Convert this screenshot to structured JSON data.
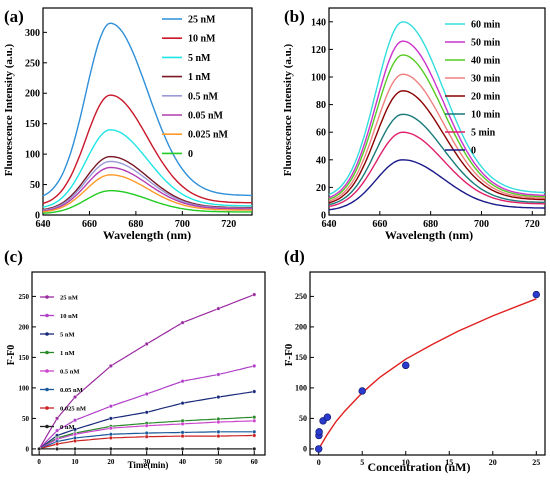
{
  "figure_labels": [
    "(a)",
    "(b)",
    "(c)",
    "(d)"
  ],
  "chart_data": [
    {
      "type": "line",
      "panel": "(a)",
      "xlabel": "Wavelength (nm)",
      "ylabel": "Fluorescence Intensity (a.u.)",
      "xlim": [
        640,
        730
      ],
      "ylim": [
        0,
        340
      ],
      "xticks": [
        640,
        660,
        680,
        700,
        720
      ],
      "yticks": [
        0,
        50,
        100,
        150,
        200,
        250,
        300
      ],
      "grid": false,
      "legend_position": "top-right",
      "series": [
        {
          "name": "25 nM",
          "color": "#2f8fd8",
          "peak": 315,
          "edge_left": 25,
          "edge_right": 32
        },
        {
          "name": "10 nM",
          "color": "#c8182a",
          "peak": 197,
          "edge_left": 15,
          "edge_right": 20
        },
        {
          "name": "5 nM",
          "color": "#1fe5e5",
          "peak": 140,
          "edge_left": 10,
          "edge_right": 15
        },
        {
          "name": "1 nM",
          "color": "#7a1a28",
          "peak": 96,
          "edge_left": 7,
          "edge_right": 12
        },
        {
          "name": "0.5 nM",
          "color": "#9a9ad8",
          "peak": 88,
          "edge_left": 6,
          "edge_right": 11
        },
        {
          "name": "0.05 nM",
          "color": "#b23cb2",
          "peak": 78,
          "edge_left": 5,
          "edge_right": 10
        },
        {
          "name": "0.025 nM",
          "color": "#ff9a2a",
          "peak": 66,
          "edge_left": 4,
          "edge_right": 8
        },
        {
          "name": "0",
          "color": "#22cc22",
          "peak": 40,
          "edge_left": 2,
          "edge_right": 5
        }
      ]
    },
    {
      "type": "line",
      "panel": "(b)",
      "xlabel": "Wavelength (nm)",
      "ylabel": "Fluorescence Intensity (a.u.)",
      "xlim": [
        640,
        725
      ],
      "ylim": [
        0,
        150
      ],
      "xticks": [
        640,
        660,
        680,
        700,
        720
      ],
      "yticks": [
        0,
        20,
        40,
        60,
        80,
        100,
        120,
        140
      ],
      "grid": false,
      "legend_position": "top-right",
      "series": [
        {
          "name": "60 min",
          "color": "#33dddd",
          "peak": 140,
          "edge_left": 12,
          "edge_right": 16
        },
        {
          "name": "50 min",
          "color": "#cc33cc",
          "peak": 126,
          "edge_left": 10,
          "edge_right": 14
        },
        {
          "name": "40 min",
          "color": "#55cc22",
          "peak": 116,
          "edge_left": 9,
          "edge_right": 13
        },
        {
          "name": "30 min",
          "color": "#f08080",
          "peak": 102,
          "edge_left": 8,
          "edge_right": 12
        },
        {
          "name": "20 min",
          "color": "#8b0000",
          "peak": 90,
          "edge_left": 7,
          "edge_right": 11
        },
        {
          "name": "10 min",
          "color": "#1a7a7a",
          "peak": 73,
          "edge_left": 6,
          "edge_right": 9
        },
        {
          "name": "5 min",
          "color": "#e0206a",
          "peak": 60,
          "edge_left": 5,
          "edge_right": 8
        },
        {
          "name": "0",
          "color": "#1a1a8a",
          "peak": 40,
          "edge_left": 3,
          "edge_right": 5
        }
      ]
    },
    {
      "type": "scatter",
      "panel": "(c)",
      "xlabel": "Time(min)",
      "ylabel": "F-F0",
      "xlim": [
        -2,
        63
      ],
      "ylim": [
        -10,
        290
      ],
      "xticks": [
        0,
        10,
        20,
        30,
        40,
        50,
        60
      ],
      "yticks": [
        0,
        50,
        100,
        150,
        200,
        250
      ],
      "grid": false,
      "legend_position": "top-left",
      "x": [
        0,
        5,
        10,
        20,
        30,
        40,
        50,
        60
      ],
      "series": [
        {
          "name": "25 nM",
          "color": "#9a2aa0",
          "values": [
            0,
            50,
            85,
            136,
            172,
            207,
            230,
            253
          ]
        },
        {
          "name": "10 nM",
          "color": "#b040c8",
          "values": [
            0,
            30,
            47,
            70,
            90,
            111,
            122,
            136
          ]
        },
        {
          "name": "5 nM",
          "color": "#1a2a7a",
          "values": [
            0,
            22,
            32,
            50,
            60,
            75,
            85,
            94
          ]
        },
        {
          "name": "1 nM",
          "color": "#2a8a2a",
          "values": [
            0,
            18,
            26,
            37,
            42,
            46,
            49,
            52
          ]
        },
        {
          "name": "0.5 nM",
          "color": "#cc44cc",
          "values": [
            0,
            16,
            24,
            34,
            38,
            41,
            44,
            46
          ]
        },
        {
          "name": "0.05 nM",
          "color": "#1a5a9a",
          "values": [
            0,
            12,
            18,
            24,
            26,
            27,
            28,
            28
          ]
        },
        {
          "name": "0.025 nM",
          "color": "#cc2222",
          "values": [
            0,
            8,
            13,
            18,
            20,
            21,
            21,
            22
          ]
        },
        {
          "name": "0 nM",
          "color": "#222222",
          "values": [
            0,
            0,
            0,
            0,
            0,
            0,
            0,
            0
          ]
        }
      ]
    },
    {
      "type": "scatter",
      "panel": "(d)",
      "xlabel": "Concentration (nM)",
      "ylabel": "F-F0",
      "xlim": [
        -1,
        26
      ],
      "ylim": [
        -10,
        290
      ],
      "xticks": [
        0,
        5,
        10,
        15,
        20,
        25
      ],
      "yticks": [
        0,
        50,
        100,
        150,
        200,
        250
      ],
      "grid": false,
      "fit_color": "#e02020",
      "point_color": "#2a3acc",
      "x": [
        0,
        0.025,
        0.05,
        0.5,
        1,
        5,
        10,
        25
      ],
      "values": [
        0,
        22,
        28,
        46,
        52,
        95,
        137,
        253
      ],
      "fit": [
        [
          0,
          0
        ],
        [
          1,
          24
        ],
        [
          2,
          45
        ],
        [
          3,
          62
        ],
        [
          5,
          92
        ],
        [
          7,
          117
        ],
        [
          10,
          147
        ],
        [
          13,
          171
        ],
        [
          16,
          193
        ],
        [
          20,
          218
        ],
        [
          25,
          246
        ]
      ]
    }
  ]
}
